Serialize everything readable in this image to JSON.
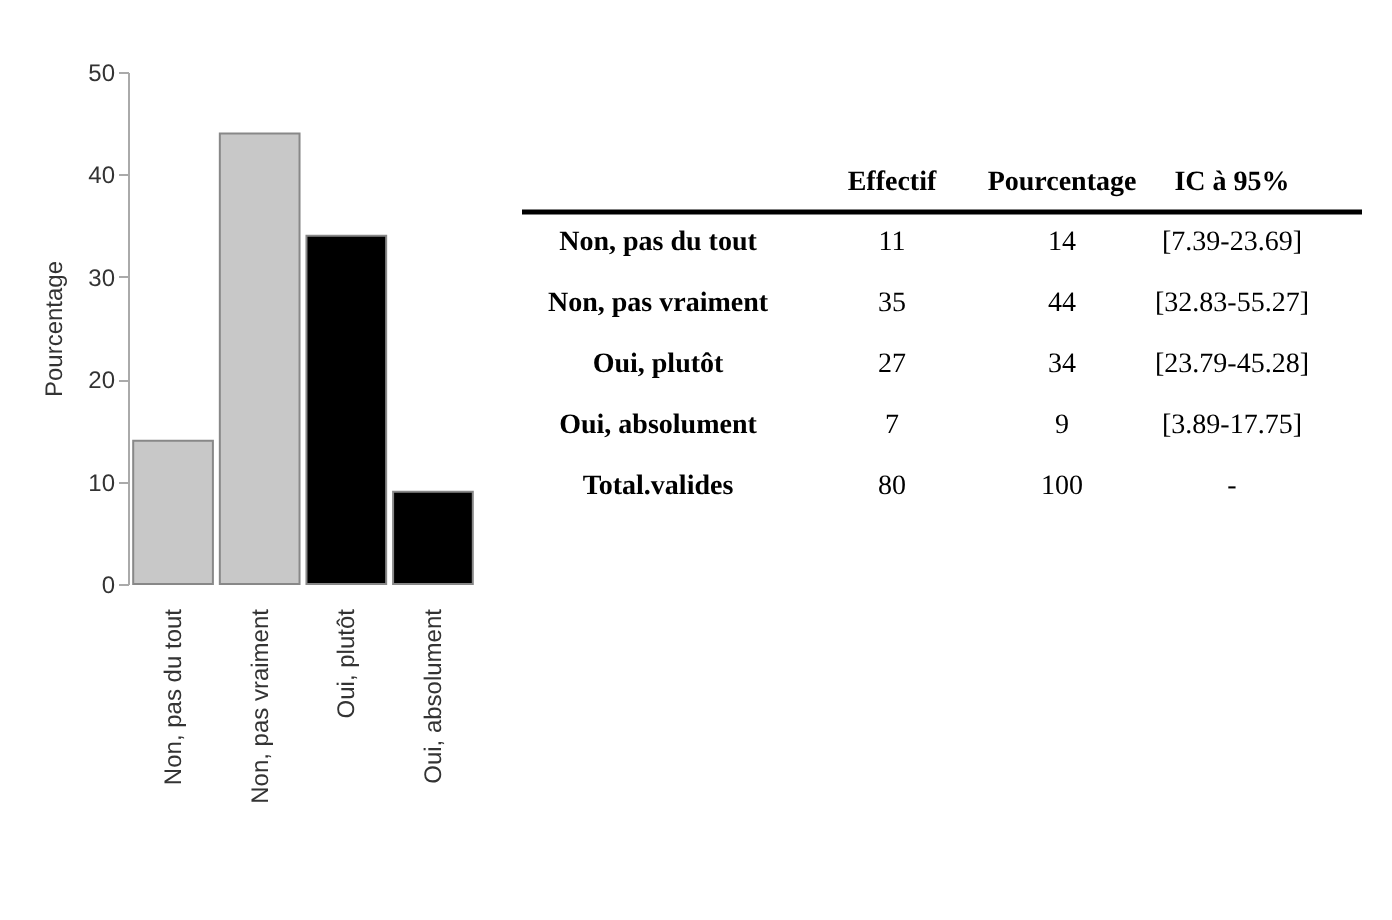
{
  "chart_data": [
    {
      "type": "bar",
      "ylabel": "Pourcentage",
      "categories": [
        "Non, pas du tout",
        "Non, pas vraiment",
        "Oui, plutôt",
        "Oui, absolument"
      ],
      "values": [
        14,
        44,
        34,
        9
      ],
      "colors": [
        "#c8c8c8",
        "#c8c8c8",
        "#000000",
        "#000000"
      ],
      "ylim": [
        0,
        50
      ],
      "yticks": [
        0,
        10,
        20,
        30,
        40,
        50
      ],
      "grid": false
    },
    {
      "type": "other",
      "data_labels": true,
      "categories": [
        "Non, pas du tout",
        "Non, pas vraiment",
        "Oui, plutôt",
        "Oui, absolument",
        "Total.valides"
      ],
      "series": [
        {
          "name": "Effectif",
          "values": [
            11,
            35,
            27,
            7,
            80
          ]
        },
        {
          "name": "Pourcentage",
          "values": [
            14,
            44,
            34,
            9,
            100
          ]
        },
        {
          "name": "IC à 95%",
          "values": [
            null,
            null,
            null,
            null,
            null
          ],
          "value_labels": [
            "[7.39-23.69]",
            "[32.83-55.27]",
            "[23.79-45.28]",
            "[3.89-17.75]",
            "-"
          ]
        }
      ]
    }
  ]
}
